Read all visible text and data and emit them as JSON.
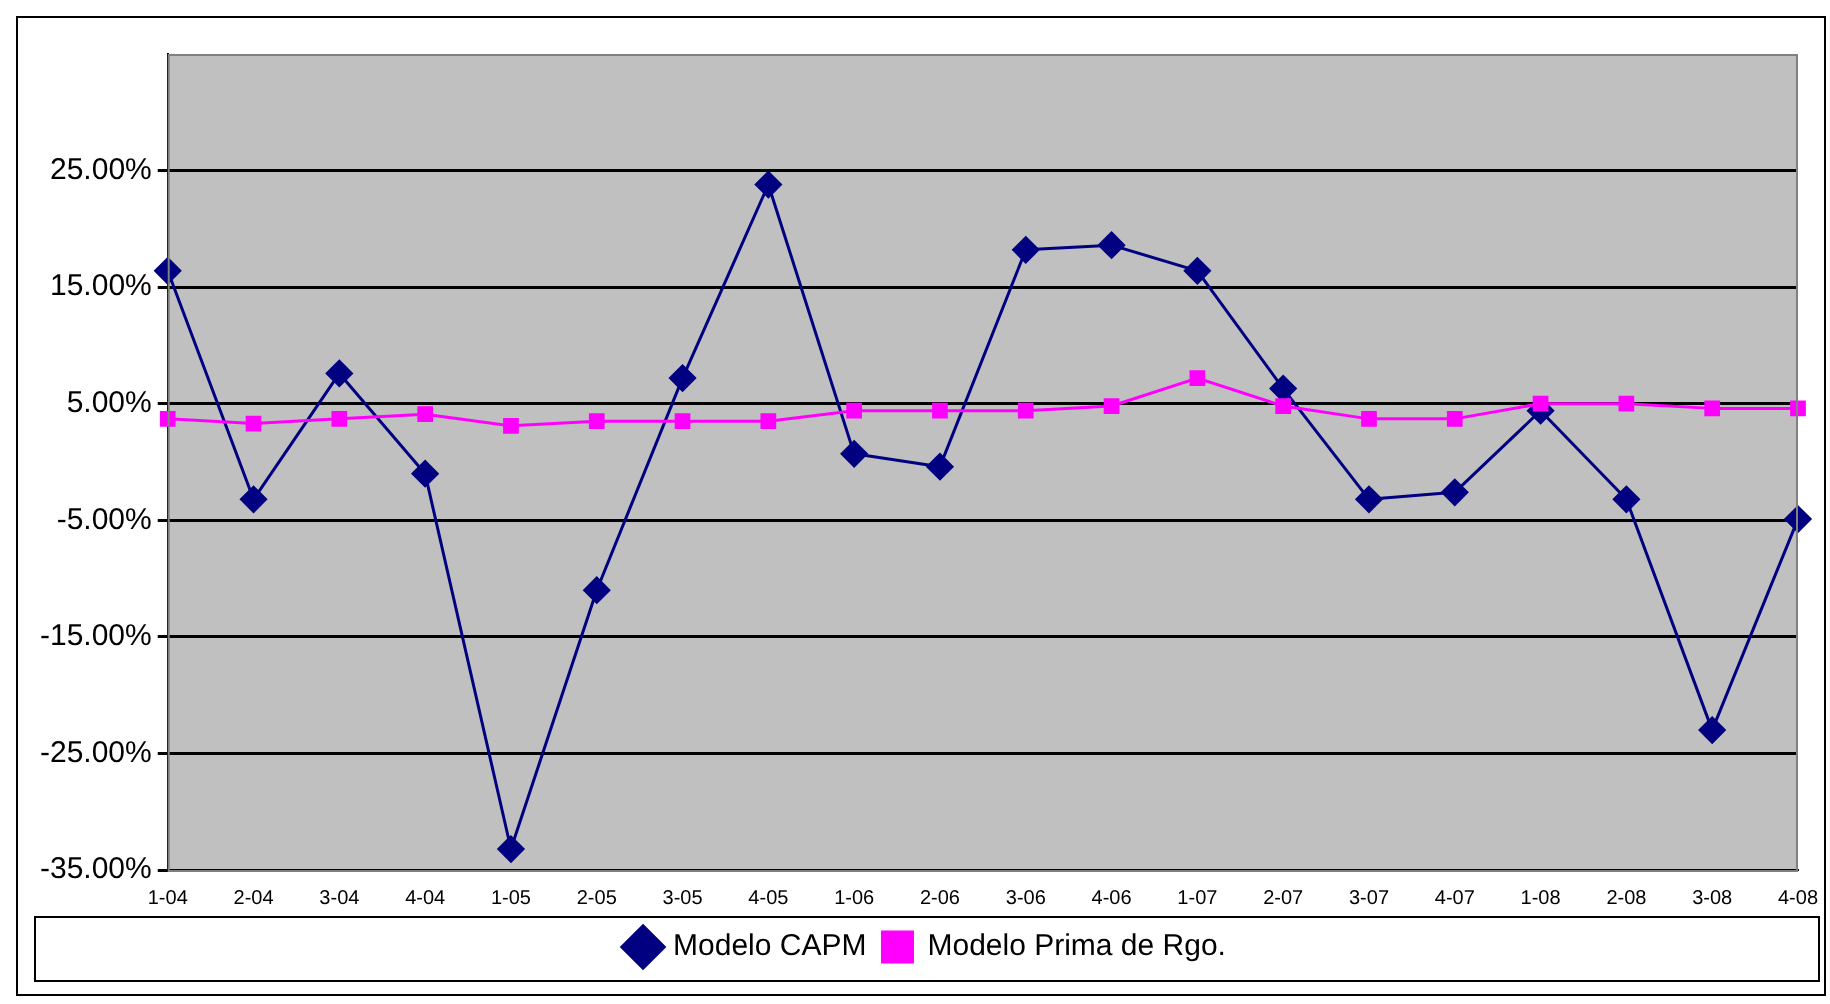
{
  "chart_data": {
    "type": "line",
    "categories": [
      "1-04",
      "2-04",
      "3-04",
      "4-04",
      "1-05",
      "2-05",
      "3-05",
      "4-05",
      "1-06",
      "2-06",
      "3-06",
      "4-06",
      "1-07",
      "2-07",
      "3-07",
      "4-07",
      "1-08",
      "2-08",
      "3-08",
      "4-08"
    ],
    "series": [
      {
        "name": "Modelo CAPM",
        "color": "#000080",
        "marker": "diamond",
        "values": [
          16.4,
          -3.2,
          7.6,
          -1.0,
          -33.2,
          -11.0,
          7.2,
          23.8,
          0.7,
          -0.4,
          18.2,
          18.6,
          16.4,
          6.3,
          -3.2,
          -2.6,
          4.4,
          -3.2,
          -23.0,
          -4.9
        ]
      },
      {
        "name": "Modelo Prima de Rgo.",
        "color": "#ff00ff",
        "marker": "square",
        "values": [
          3.7,
          3.3,
          3.7,
          4.1,
          3.1,
          3.5,
          3.5,
          3.5,
          4.4,
          4.4,
          4.4,
          4.8,
          7.2,
          4.8,
          3.7,
          3.7,
          5.0,
          5.0,
          4.6,
          4.6
        ]
      }
    ],
    "ylim": [
      -35,
      35
    ],
    "yticks": [
      {
        "value": -35,
        "label": "-35.00%"
      },
      {
        "value": -25,
        "label": "-25.00%"
      },
      {
        "value": -15,
        "label": "-15.00%"
      },
      {
        "value": -5,
        "label": "-5.00%"
      },
      {
        "value": 5,
        "label": "5.00%"
      },
      {
        "value": 15,
        "label": "15.00%"
      },
      {
        "value": 25,
        "label": "25.00%"
      }
    ],
    "grid": "y",
    "legend": "bottom",
    "line_style": "solid"
  }
}
